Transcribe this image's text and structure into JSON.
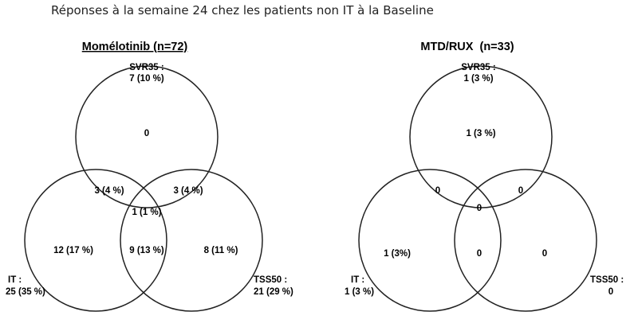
{
  "title": "Réponses à la semaine 24 chez les patients non IT à la Baseline",
  "panels": [
    {
      "heading": "Momélotinib (n=72)",
      "sets": {
        "svr35": {
          "name": "SVR35 :",
          "total": "7 (10 %)"
        },
        "it": {
          "name": "IT :",
          "total": "25 (35 %)"
        },
        "tss50": {
          "name": "TSS50 :",
          "total": "21 (29 %)"
        }
      },
      "regions": {
        "svr_only": "0",
        "svr_it": "3 (4 %)",
        "svr_tss": "3 (4 %)",
        "all_three": "1 (1 %)",
        "it_only": "12 (17 %)",
        "it_tss": "9 (13 %)",
        "tss_only": "8 (11 %)"
      }
    },
    {
      "heading": "MTD/RUX  (n=33)",
      "sets": {
        "svr35": {
          "name": "SVR35 :",
          "total": "1 (3 %)"
        },
        "it": {
          "name": "IT :",
          "total": "1 (3 %)"
        },
        "tss50": {
          "name": "TSS50 :",
          "total": "0"
        }
      },
      "regions": {
        "svr_only": "1 (3 %)",
        "svr_it": "0",
        "svr_tss": "0",
        "all_three": "0",
        "it_only": "1 (3%)",
        "it_tss": "0",
        "tss_only": "0"
      }
    }
  ]
}
